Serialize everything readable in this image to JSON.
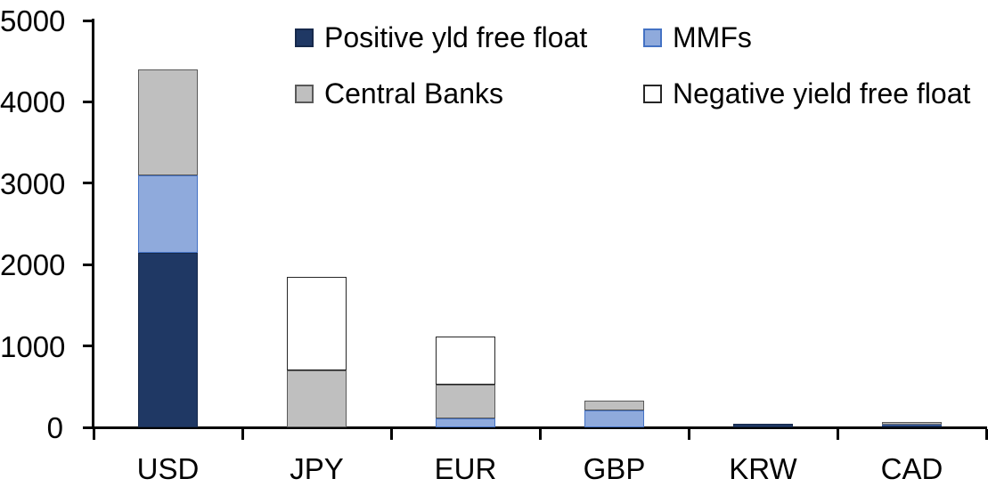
{
  "chart_data": {
    "type": "bar",
    "stacked": true,
    "title": "",
    "xlabel": "",
    "ylabel": "",
    "categories": [
      "USD",
      "JPY",
      "EUR",
      "GBP",
      "KRW",
      "CAD"
    ],
    "series": [
      {
        "name": "Positive yld free float",
        "color": "#1F3864",
        "border_color": "#16294B",
        "values": [
          2150,
          0,
          0,
          0,
          40,
          20
        ]
      },
      {
        "name": "MMFs",
        "color": "#8FAADC",
        "border_color": "#4472C4",
        "values": [
          950,
          0,
          110,
          210,
          0,
          15
        ]
      },
      {
        "name": "Central Banks",
        "color": "#BFBFBF",
        "border_color": "#595959",
        "values": [
          1300,
          700,
          420,
          120,
          0,
          30
        ]
      },
      {
        "name": "Negative yield free float",
        "color": "#FFFFFF",
        "border_color": "#262626",
        "values": [
          0,
          1150,
          590,
          0,
          0,
          0
        ]
      }
    ],
    "totals": [
      4400,
      1850,
      1120,
      330,
      40,
      65
    ],
    "ylim": [
      0,
      5000
    ],
    "yticks": [
      0,
      1000,
      2000,
      3000,
      4000,
      5000
    ],
    "grid": false,
    "legend_position": "top",
    "axis_color": "#000000",
    "background_color": "#FFFFFF"
  }
}
